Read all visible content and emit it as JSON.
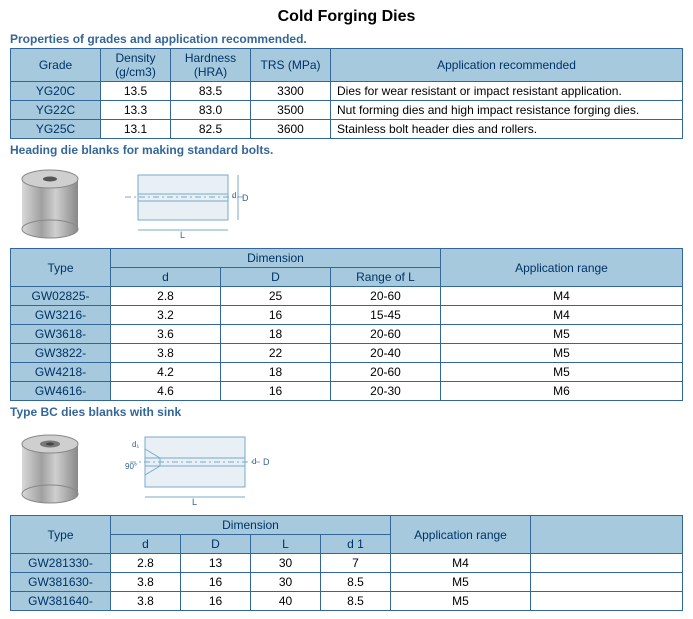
{
  "title": "Cold Forging Dies",
  "section1": {
    "heading": "Properties of grades and application recommended.",
    "columns": [
      "Grade",
      "Density (g/cm3)",
      "Hardness (HRA)",
      "TRS (MPa)",
      "Application recommended"
    ],
    "rows": [
      [
        "YG20C",
        "13.5",
        "83.5",
        "3300",
        "Dies for wear resistant or impact resistant application."
      ],
      [
        "YG22C",
        "13.3",
        "83.0",
        "3500",
        "Nut forming dies and high impact resistance forging dies."
      ],
      [
        "YG25C",
        "13.1",
        "82.5",
        "3600",
        "Stainless bolt header dies and rollers."
      ]
    ]
  },
  "section2": {
    "heading": "Heading die blanks for making standard bolts.",
    "columns_top": [
      "Type",
      "Dimension",
      "Application range"
    ],
    "columns_sub": [
      "d",
      "D",
      "Range of L"
    ],
    "rows": [
      [
        "GW02825-",
        "2.8",
        "25",
        "20-60",
        "M4"
      ],
      [
        "GW3216-",
        "3.2",
        "16",
        "15-45",
        "M4"
      ],
      [
        "GW3618-",
        "3.6",
        "18",
        "20-60",
        "M5"
      ],
      [
        "GW3822-",
        "3.8",
        "22",
        "20-40",
        "M5"
      ],
      [
        "GW4218-",
        "4.2",
        "18",
        "20-60",
        "M5"
      ],
      [
        "GW4616-",
        "4.6",
        "16",
        "20-30",
        "M6"
      ]
    ]
  },
  "section3": {
    "heading": "Type BC dies blanks with sink",
    "columns_top": [
      "Type",
      "Dimension",
      "Application range",
      ""
    ],
    "columns_sub": [
      "d",
      "D",
      "L",
      "d 1"
    ],
    "rows": [
      [
        "GW281330-",
        "2.8",
        "13",
        "30",
        "7",
        "M4",
        ""
      ],
      [
        "GW381630-",
        "3.8",
        "16",
        "30",
        "8.5",
        "M5",
        ""
      ],
      [
        "GW381640-",
        "3.8",
        "16",
        "40",
        "8.5",
        "M5",
        ""
      ]
    ]
  },
  "colors": {
    "header_bg": "#a6c9de",
    "border": "#336699",
    "heading_text": "#336699",
    "die_fill_light": "#b8b8b8",
    "die_fill_dark": "#8a8a8a",
    "diagram_stroke": "#7aa9c9",
    "diagram_fill": "#e8f0f5"
  }
}
